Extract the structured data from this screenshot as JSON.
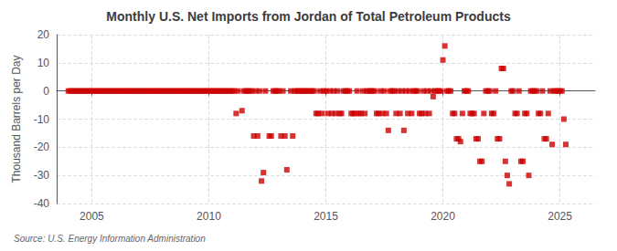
{
  "chart_data": {
    "type": "scatter",
    "title": "Monthly U.S. Net Imports from Jordan of Total Petroleum Products",
    "ylabel": "Thousand Barrels per Day",
    "source": "Source: U.S. Energy Information Administration",
    "xlim": [
      2003.5,
      2026.5
    ],
    "xticks": [
      2005,
      2010,
      2015,
      2020,
      2025
    ],
    "ylim": [
      -40,
      20
    ],
    "yticks": [
      -40,
      -30,
      -20,
      -10,
      0,
      10,
      20
    ],
    "grid": true,
    "marker": "square",
    "color": "#cc0000",
    "x": [
      2004.0,
      2004.083,
      2004.167,
      2004.25,
      2004.333,
      2004.417,
      2004.5,
      2004.583,
      2004.667,
      2004.75,
      2004.833,
      2004.917,
      2005.0,
      2005.083,
      2005.167,
      2005.25,
      2005.333,
      2005.417,
      2005.5,
      2005.583,
      2005.667,
      2005.75,
      2005.833,
      2005.917,
      2006.0,
      2006.083,
      2006.167,
      2006.25,
      2006.333,
      2006.417,
      2006.5,
      2006.583,
      2006.667,
      2006.75,
      2006.833,
      2006.917,
      2007.0,
      2007.083,
      2007.167,
      2007.25,
      2007.333,
      2007.417,
      2007.5,
      2007.583,
      2007.667,
      2007.75,
      2007.833,
      2007.917,
      2008.0,
      2008.083,
      2008.167,
      2008.25,
      2008.333,
      2008.417,
      2008.5,
      2008.583,
      2008.667,
      2008.75,
      2008.833,
      2008.917,
      2009.0,
      2009.083,
      2009.167,
      2009.25,
      2009.333,
      2009.417,
      2009.5,
      2009.583,
      2009.667,
      2009.75,
      2009.833,
      2009.917,
      2010.0,
      2010.083,
      2010.167,
      2010.25,
      2010.333,
      2010.417,
      2010.5,
      2010.583,
      2010.667,
      2010.75,
      2010.833,
      2010.917,
      2011.0,
      2011.083,
      2011.167,
      2011.25,
      2011.417,
      2011.5,
      2011.583,
      2011.667,
      2011.75,
      2011.833,
      2011.917,
      2012.0,
      2012.083,
      2012.167,
      2012.25,
      2012.333,
      2012.417,
      2012.583,
      2012.667,
      2012.75,
      2012.833,
      2012.917,
      2013.0,
      2013.083,
      2013.167,
      2013.25,
      2013.333,
      2013.5,
      2013.583,
      2013.667,
      2013.75,
      2013.833,
      2013.917,
      2014.0,
      2014.083,
      2014.167,
      2014.25,
      2014.333,
      2014.417,
      2014.5,
      2014.583,
      2014.667,
      2014.75,
      2014.833,
      2014.917,
      2015.0,
      2015.083,
      2015.167,
      2015.25,
      2015.333,
      2015.417,
      2015.5,
      2015.583,
      2015.667,
      2015.75,
      2015.833,
      2015.917,
      2016.0,
      2016.083,
      2016.167,
      2016.25,
      2016.333,
      2016.417,
      2016.5,
      2016.583,
      2016.667,
      2016.75,
      2016.833,
      2016.917,
      2017.0,
      2017.083,
      2017.167,
      2017.25,
      2017.333,
      2017.417,
      2017.5,
      2017.583,
      2017.667,
      2017.75,
      2017.833,
      2017.917,
      2018.0,
      2018.083,
      2018.167,
      2018.25,
      2018.333,
      2018.417,
      2018.5,
      2018.583,
      2018.667,
      2018.75,
      2018.833,
      2018.917,
      2019.0,
      2019.083,
      2019.167,
      2019.25,
      2019.333,
      2019.417,
      2019.5,
      2019.583,
      2019.667,
      2019.75,
      2019.833,
      2019.917,
      2020.0,
      2020.083,
      2020.167,
      2020.25,
      2020.333,
      2020.417,
      2020.5,
      2020.583,
      2020.667,
      2020.75,
      2020.833,
      2020.917,
      2021.0,
      2021.083,
      2021.167,
      2021.25,
      2021.333,
      2021.417,
      2021.5,
      2021.583,
      2021.667,
      2021.75,
      2021.833,
      2021.917,
      2022.0,
      2022.083,
      2022.167,
      2022.25,
      2022.333,
      2022.417,
      2022.5,
      2022.583,
      2022.667,
      2022.75,
      2022.833,
      2022.917,
      2023.0,
      2023.083,
      2023.167,
      2023.25,
      2023.333,
      2023.417,
      2023.5,
      2023.583,
      2023.667,
      2023.75,
      2023.833,
      2023.917,
      2024.0,
      2024.083,
      2024.167,
      2024.25,
      2024.333,
      2024.417,
      2024.5,
      2024.583,
      2024.667,
      2024.75,
      2024.833,
      2024.917,
      2025.0,
      2025.083,
      2025.167,
      2025.25
    ],
    "values": [
      0,
      0,
      0,
      0,
      0,
      0,
      0,
      0,
      0,
      0,
      0,
      0,
      0,
      0,
      0,
      0,
      0,
      0,
      0,
      0,
      0,
      0,
      0,
      0,
      0,
      0,
      0,
      0,
      0,
      0,
      0,
      0,
      0,
      0,
      0,
      0,
      0,
      0,
      0,
      0,
      0,
      0,
      0,
      0,
      0,
      0,
      0,
      0,
      0,
      0,
      0,
      0,
      0,
      0,
      0,
      0,
      0,
      0,
      0,
      0,
      0,
      0,
      0,
      0,
      0,
      0,
      0,
      0,
      0,
      0,
      0,
      0,
      0,
      0,
      0,
      0,
      0,
      0,
      0,
      0,
      0,
      0,
      0,
      0,
      0,
      0,
      -8,
      0,
      -7,
      0,
      0,
      0,
      0,
      0,
      -16,
      0,
      -16,
      0,
      -32,
      -29,
      0,
      -16,
      -16,
      0,
      0,
      0,
      0,
      -16,
      0,
      -16,
      -28,
      0,
      -16,
      0,
      0,
      0,
      0,
      0,
      0,
      0,
      0,
      0,
      0,
      0,
      -8,
      -8,
      0,
      -8,
      0,
      0,
      -8,
      0,
      -8,
      0,
      -8,
      0,
      -8,
      -8,
      0,
      0,
      0,
      0,
      -8,
      -8,
      -8,
      0,
      -8,
      -8,
      0,
      -8,
      0,
      0,
      0,
      0,
      0,
      -8,
      -8,
      0,
      -8,
      0,
      -8,
      -14,
      0,
      0,
      0,
      -8,
      0,
      -8,
      0,
      -14,
      0,
      -8,
      0,
      -8,
      0,
      0,
      0,
      -8,
      -8,
      0,
      -8,
      0,
      -8,
      0,
      -2,
      0,
      0,
      0,
      0,
      11,
      16,
      0,
      0,
      0,
      -8,
      -8,
      -17,
      -17,
      -18,
      -8,
      0,
      0,
      0,
      -8,
      -8,
      -8,
      -17,
      -17,
      -25,
      -25,
      -8,
      0,
      0,
      0,
      -8,
      -8,
      0,
      -17,
      -17,
      8,
      8,
      -25,
      -30,
      -33,
      0,
      0,
      -8,
      -8,
      0,
      -25,
      -25,
      -8,
      -8,
      -30,
      0,
      0,
      0,
      0,
      -8,
      -8,
      0,
      -17,
      -17,
      -8,
      0,
      -19,
      0,
      0,
      0,
      0,
      0,
      -10,
      -19
    ]
  }
}
